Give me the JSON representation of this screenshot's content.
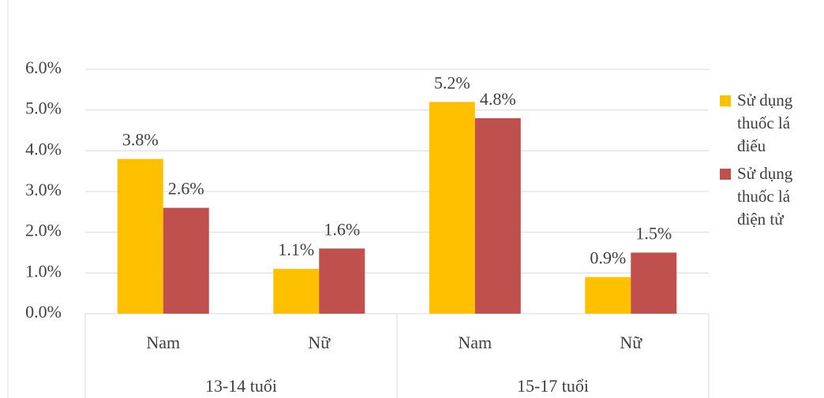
{
  "chart_data": {
    "type": "bar",
    "categories": [
      "Nam",
      "Nữ",
      "Nam",
      "Nữ"
    ],
    "category_groups": [
      "13-14 tuổi",
      "15-17 tuổi"
    ],
    "series": [
      {
        "name": "Sử dụng thuốc lá điếu",
        "color": "#FFC000",
        "values": [
          3.8,
          1.1,
          5.2,
          0.9
        ],
        "value_labels": [
          "3.8%",
          "1.1%",
          "5.2%",
          "0.9%"
        ]
      },
      {
        "name": "Sử dụng thuốc lá điện tử",
        "color": "#C0504D",
        "values": [
          2.6,
          1.6,
          4.8,
          1.5
        ],
        "value_labels": [
          "2.6%",
          "1.6%",
          "4.8%",
          "1.5%"
        ]
      }
    ],
    "ylim": [
      0,
      6
    ],
    "yticks": [
      {
        "value": 0,
        "label": "0.0%"
      },
      {
        "value": 1,
        "label": "1.0%"
      },
      {
        "value": 2,
        "label": "2.0%"
      },
      {
        "value": 3,
        "label": "3.0%"
      },
      {
        "value": 4,
        "label": "4.0%"
      },
      {
        "value": 5,
        "label": "5.0%"
      },
      {
        "value": 6,
        "label": "6.0%"
      }
    ],
    "grid": true,
    "legend": "right"
  }
}
